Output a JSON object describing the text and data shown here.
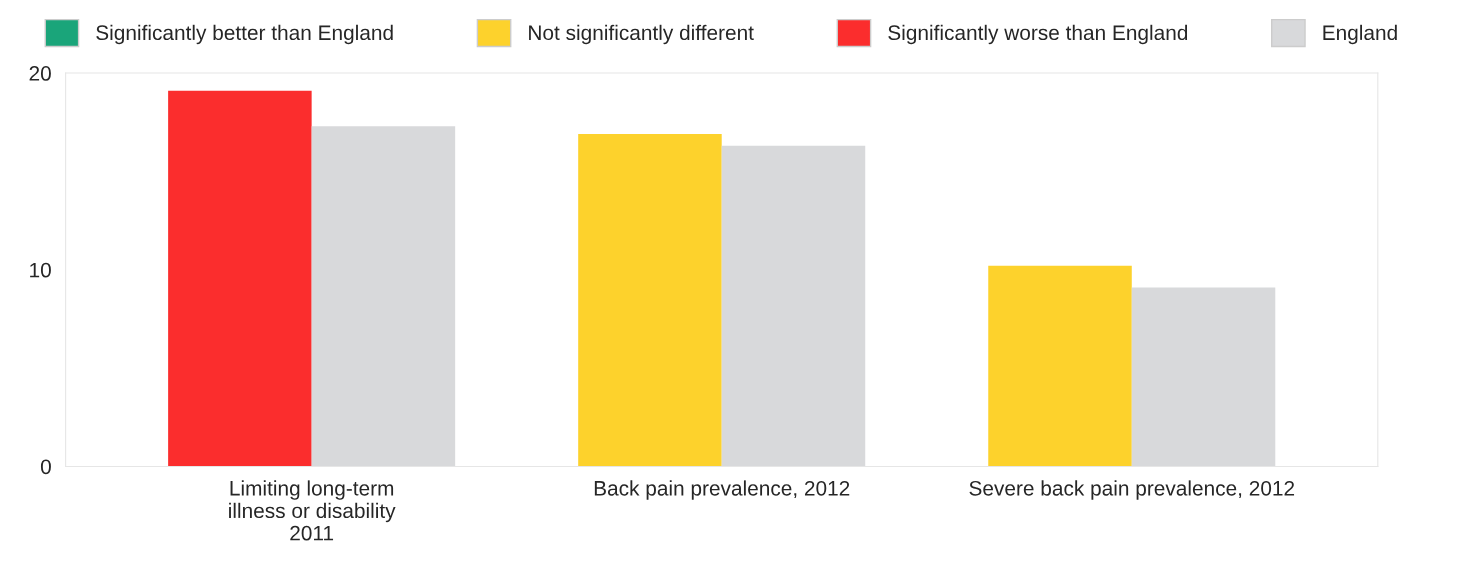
{
  "chart_data": {
    "type": "bar",
    "categories": [
      "Limiting long-term\nillness or disability\n2011",
      "Back pain prevalence, 2012",
      "Severe back pain prevalence, 2012"
    ],
    "series": [
      {
        "name": "Significantly better than England",
        "color": "#1aa57a",
        "values": [
          null,
          null,
          null
        ]
      },
      {
        "name": "Not significantly different",
        "color": "#fdd22c",
        "values": [
          null,
          16.9,
          10.2
        ]
      },
      {
        "name": "Significantly worse than England",
        "color": "#fb2d2d",
        "values": [
          19.1,
          null,
          null
        ]
      },
      {
        "name": "England",
        "color": "#d8d9db",
        "values": [
          17.3,
          16.3,
          9.1
        ]
      }
    ],
    "ylim": [
      0,
      20
    ],
    "yticks": [
      0,
      10,
      20
    ],
    "grid": false,
    "legend": "top"
  }
}
